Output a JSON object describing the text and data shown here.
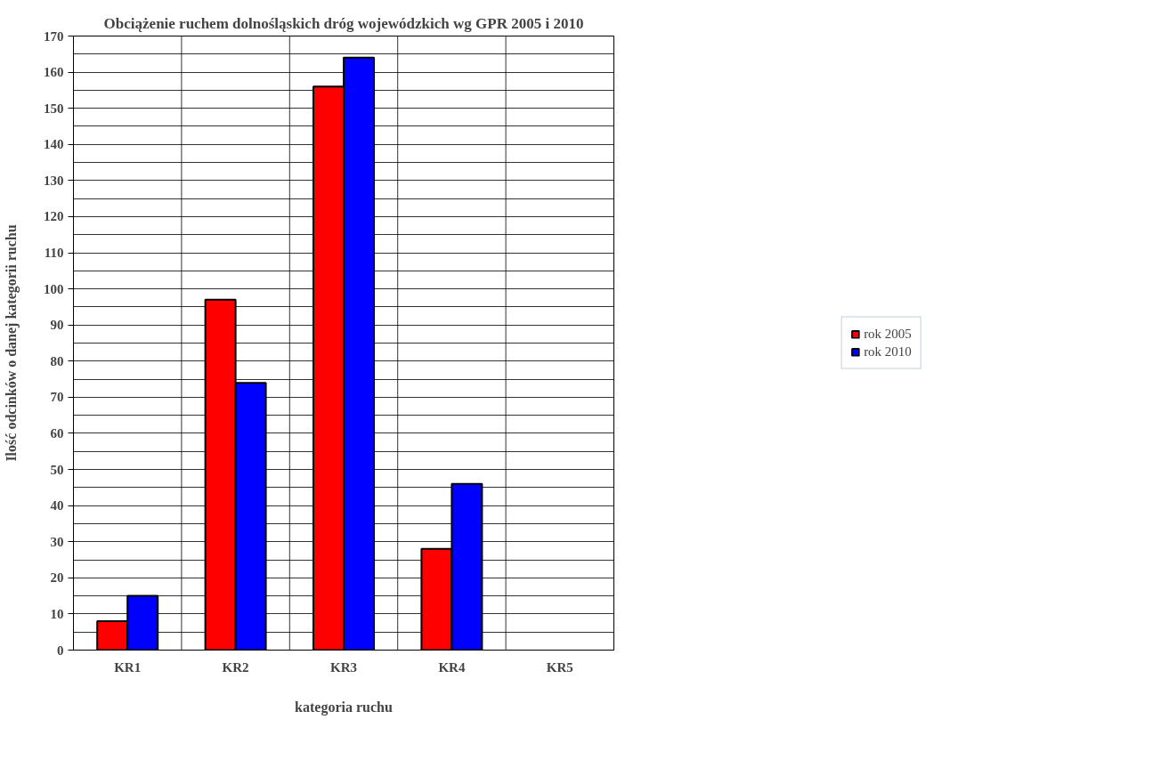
{
  "chart_data": {
    "type": "bar",
    "title": "Obciążenie ruchem dolnośląskich dróg wojewódzkich wg GPR 2005 i 2010",
    "xlabel": "kategoria ruchu",
    "ylabel": "Ilość odcinków o danej kategorii ruchu",
    "categories": [
      "KR1",
      "KR2",
      "KR3",
      "KR4",
      "KR5"
    ],
    "series": [
      {
        "name": "rok 2005",
        "color": "#ff0000",
        "values": [
          8,
          97,
          156,
          28,
          null
        ]
      },
      {
        "name": "rok 2010",
        "color": "#0000ff",
        "values": [
          15,
          74,
          164,
          46,
          null
        ]
      }
    ],
    "ylim": [
      0,
      170
    ],
    "yticks": [
      0,
      10,
      20,
      30,
      40,
      50,
      60,
      70,
      80,
      90,
      100,
      110,
      120,
      130,
      140,
      150,
      160,
      170
    ],
    "grid": true,
    "legend": "right"
  }
}
